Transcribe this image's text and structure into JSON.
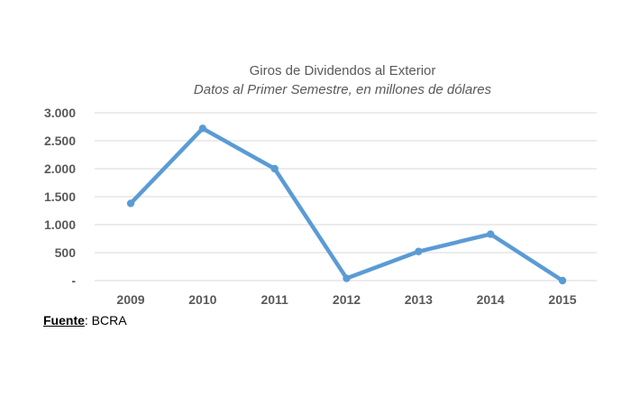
{
  "chart_data": {
    "type": "line",
    "title": "Giros de Dividendos al Exterior",
    "subtitle": "Datos al Primer Semestre, en millones de dólares",
    "categories": [
      "2009",
      "2010",
      "2011",
      "2012",
      "2013",
      "2014",
      "2015"
    ],
    "series": [
      {
        "values": [
          1380,
          2720,
          2000,
          40,
          520,
          830,
          0
        ]
      }
    ],
    "ylim": [
      0,
      3000
    ],
    "yticks": [
      {
        "value": 3000,
        "label": "3.000"
      },
      {
        "value": 2500,
        "label": "2.500"
      },
      {
        "value": 2000,
        "label": "2.000"
      },
      {
        "value": 1500,
        "label": "1.500"
      },
      {
        "value": 1000,
        "label": "1.000"
      },
      {
        "value": 500,
        "label": "500"
      },
      {
        "value": 0,
        "label": "-"
      }
    ],
    "grid": true,
    "line_color": "#5b9bd5",
    "grid_color": "#d9d9d9"
  },
  "source": {
    "label": "Fuente",
    "text": ": BCRA"
  }
}
